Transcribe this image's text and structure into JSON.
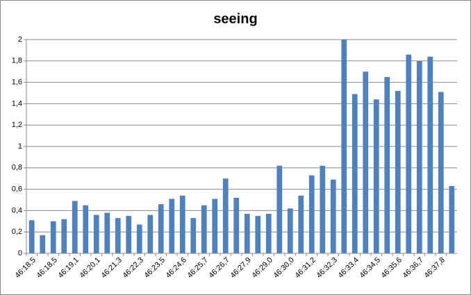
{
  "chart_data": {
    "type": "bar",
    "title": "seeing",
    "categories": [
      "46:18,5",
      null,
      "46:18,5",
      null,
      "46:19,1",
      null,
      "46:20,1",
      null,
      "46:21,3",
      null,
      "46:22,3",
      null,
      "46:23,5",
      null,
      "46:24,6",
      null,
      "46:25,7",
      null,
      "46:26,7",
      null,
      "46:27,9",
      null,
      "46:29,0",
      null,
      "46:30,0",
      null,
      "46:31,2",
      null,
      "46:32,3",
      null,
      "46:33,4",
      null,
      "46:34,5",
      null,
      "46:35,6",
      null,
      "46:36,7",
      null,
      "46:37,8",
      null
    ],
    "values": [
      0.31,
      0.17,
      0.3,
      0.32,
      0.49,
      0.45,
      0.36,
      0.38,
      0.33,
      0.35,
      0.27,
      0.36,
      0.46,
      0.51,
      0.54,
      0.33,
      0.45,
      0.51,
      0.7,
      0.52,
      0.37,
      0.35,
      0.37,
      0.82,
      0.42,
      0.54,
      0.73,
      0.82,
      0.69,
      2.0,
      1.49,
      1.7,
      1.44,
      1.65,
      1.52,
      1.86,
      1.8,
      1.84,
      1.51,
      0.63
    ],
    "color": "#4f81bd",
    "ylim": [
      0,
      2
    ],
    "yticks": [
      0,
      {
        "value": 0.2,
        "label": "0,2"
      },
      {
        "value": 0.4,
        "label": "0,4"
      },
      {
        "value": 0.6,
        "label": "0,6"
      },
      {
        "value": 0.8,
        "label": "0,8"
      },
      1,
      {
        "value": 1.2,
        "label": "1,2"
      },
      {
        "value": 1.4,
        "label": "1,4"
      },
      {
        "value": 1.6,
        "label": "1,6"
      },
      {
        "value": 1.8,
        "label": "1,8"
      },
      2
    ],
    "grid": true
  }
}
